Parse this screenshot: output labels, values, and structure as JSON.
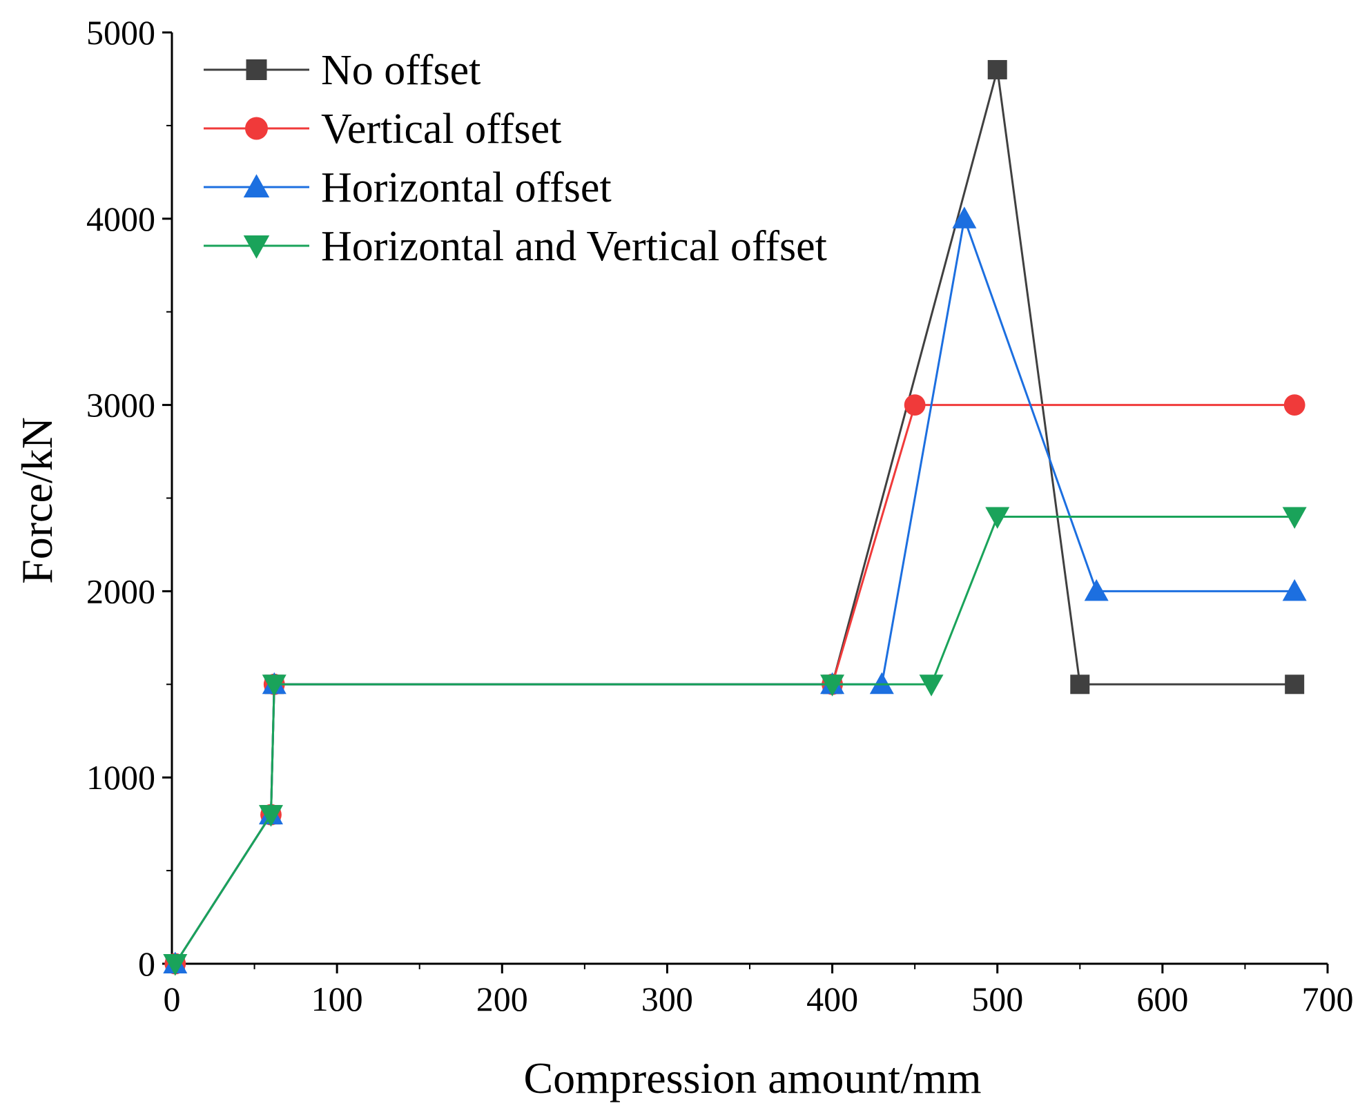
{
  "chart_data": {
    "type": "line",
    "title": "",
    "xlabel": "Compression amount/mm",
    "ylabel": "Force/kN",
    "xlim": [
      0,
      700
    ],
    "ylim": [
      0,
      5000
    ],
    "xticks": [
      0,
      100,
      200,
      300,
      400,
      500,
      600,
      700
    ],
    "yticks": [
      0,
      1000,
      2000,
      3000,
      4000,
      5000
    ],
    "xtick_labels": [
      "0",
      "100",
      "200",
      "300",
      "400",
      "500",
      "600",
      "700"
    ],
    "ytick_labels": [
      "0",
      "1000",
      "2000",
      "3000",
      "4000",
      "5000"
    ],
    "grid": false,
    "legend_position": "top-left",
    "series": [
      {
        "name": "No offset",
        "color": "#404040",
        "marker": "square",
        "x": [
          2,
          60,
          62,
          400,
          500,
          550,
          680
        ],
        "y": [
          0,
          800,
          1500,
          1500,
          4800,
          1500,
          1500
        ]
      },
      {
        "name": "Vertical offset",
        "color": "#f03a3a",
        "marker": "circle",
        "x": [
          2,
          60,
          62,
          400,
          450,
          680
        ],
        "y": [
          0,
          800,
          1500,
          1500,
          3000,
          3000
        ]
      },
      {
        "name": "Horizontal offset",
        "color": "#1c6fe0",
        "marker": "triangle-up",
        "x": [
          2,
          60,
          62,
          400,
          430,
          480,
          560,
          680
        ],
        "y": [
          0,
          800,
          1500,
          1500,
          1500,
          4000,
          2000,
          2000
        ]
      },
      {
        "name": "Horizontal and Vertical offset",
        "color": "#1aa35a",
        "marker": "triangle-down",
        "x": [
          2,
          60,
          62,
          400,
          460,
          500,
          680
        ],
        "y": [
          0,
          800,
          1500,
          1500,
          1500,
          2400,
          2400
        ]
      }
    ]
  }
}
